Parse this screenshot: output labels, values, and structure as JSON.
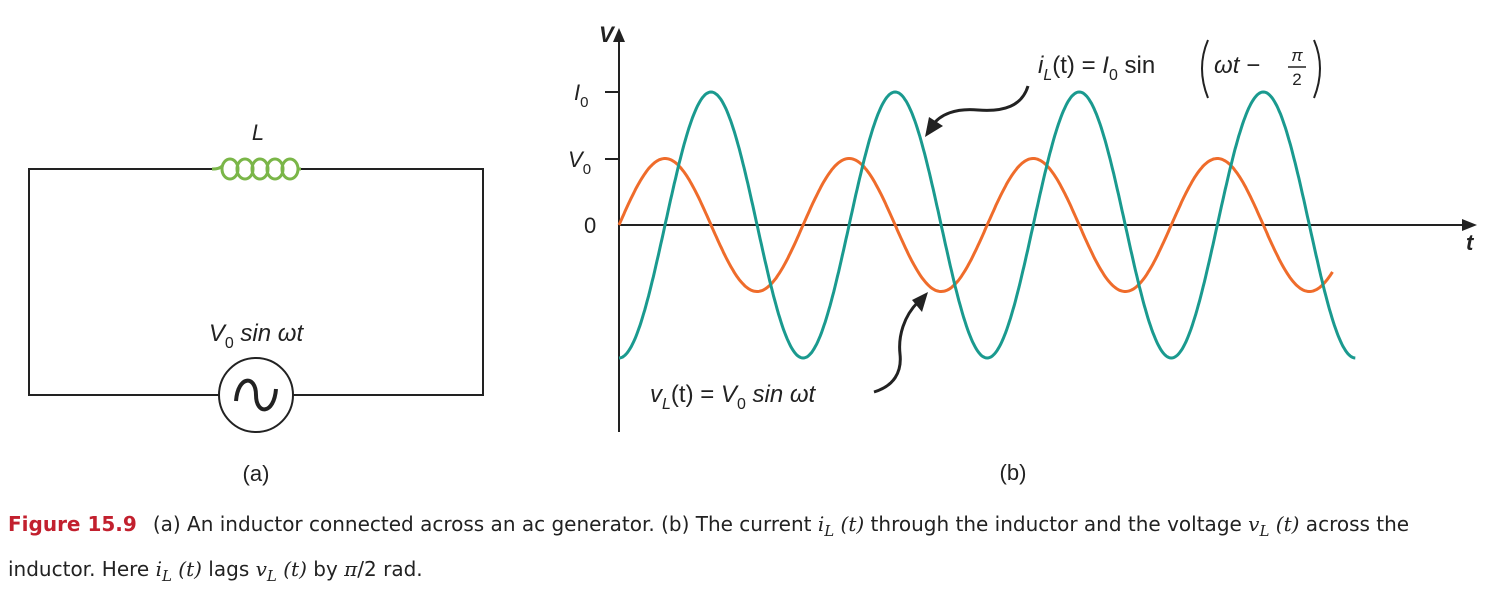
{
  "figure": {
    "panel_a": {
      "inductor_label": "L",
      "source_label": "V",
      "source_label_sub": "0",
      "source_label_rest": " sin ωt",
      "panel_label": "(a)",
      "wire_color": "#222222",
      "coil_color": "#7ab648"
    },
    "panel_b": {
      "y_axis_label": "V",
      "x_axis_label": "t",
      "tick_I0": "I",
      "tick_I0_sub": "0",
      "tick_V0": "V",
      "tick_V0_sub": "0",
      "tick_zero": "0",
      "panel_label": "(b)",
      "current_eq": {
        "lhs": "i",
        "lhs_sub": "L",
        "lhs_rest": "(t) = ",
        "amp": "I",
        "amp_sub": "0",
        "fn": " sin ",
        "inner": "ωt − ",
        "frac_num": "π",
        "frac_den": "2"
      },
      "voltage_eq": {
        "lhs": "v",
        "lhs_sub": "L",
        "lhs_rest": "(t) = ",
        "amp": "V",
        "amp_sub": "0",
        "rest": " sin ωt"
      }
    }
  },
  "chart_data": {
    "type": "line",
    "x_label": "t",
    "y_label": "V",
    "y_ticks": [
      "0",
      "V0",
      "I0"
    ],
    "series": [
      {
        "name": "i_L(t) = I0 sin(ωt − π/2)",
        "color": "#1a9a8f",
        "amplitude": 1.0,
        "phase": -1.5708,
        "t_end": 25.13
      },
      {
        "name": "v_L(t) = V0 sin ωt",
        "color": "#ef6c2b",
        "amplitude": 0.5,
        "phase": 0,
        "t_end": 24.35
      }
    ],
    "t_range": [
      0,
      26.5
    ],
    "y_range": [
      -1.05,
      1.05
    ]
  },
  "caption": {
    "label": "Figure 15.9",
    "text_1": "(a) An inductor connected across an ac generator. (b) The current ",
    "m1": "i",
    "m1_sub": "L",
    "m1_rest": " (t)",
    "text_2": " through the inductor and the voltage ",
    "m2": "v",
    "m2_sub": "L",
    "m2_rest": " (t)",
    "text_3": " across the inductor. Here ",
    "m3": "i",
    "m3_sub": "L",
    "m3_rest": " (t)",
    "text_4": " lags ",
    "m4": "v",
    "m4_sub": "L",
    "m4_rest": " (t)",
    "text_5": " by ",
    "m5": "π",
    "text_6": "/2 rad."
  }
}
